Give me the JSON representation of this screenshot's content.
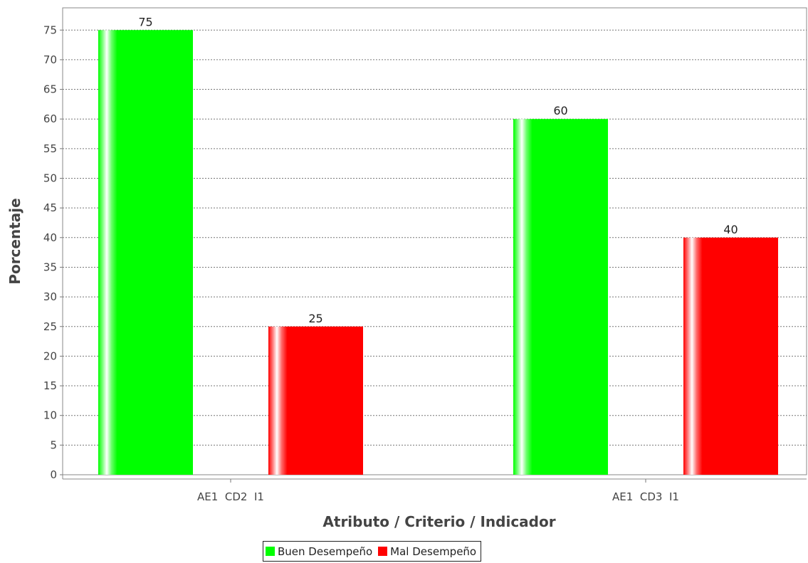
{
  "chart_data": {
    "type": "bar",
    "title": "",
    "xlabel": "Atributo / Criterio / Indicador",
    "ylabel": "Porcentaje",
    "categories": [
      "AE1  CD2  I1",
      "AE1  CD3  I1"
    ],
    "series": [
      {
        "name": "Buen Desempeño",
        "color": "#00ff00",
        "values": [
          75,
          60
        ]
      },
      {
        "name": "Mal Desempeño",
        "color": "#ff0000",
        "values": [
          25,
          40
        ]
      }
    ],
    "ylim": [
      0,
      78
    ],
    "yticks": [
      0,
      5,
      10,
      15,
      20,
      25,
      30,
      35,
      40,
      45,
      50,
      55,
      60,
      65,
      70,
      75
    ],
    "grid": true,
    "legend_position": "bottom-center",
    "data_labels": true
  }
}
